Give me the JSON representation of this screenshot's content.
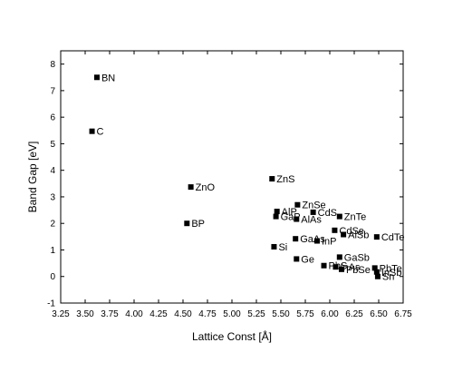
{
  "chart_data": {
    "type": "scatter",
    "xlabel": "Lattice Const [Å]",
    "ylabel": "Band Gap [eV]",
    "xlim": [
      3.25,
      6.75
    ],
    "ylim": [
      -1,
      8.5
    ],
    "xticks": [
      "3.25",
      "3.50",
      "3.75",
      "4.00",
      "4.25",
      "4.50",
      "4.75",
      "5.00",
      "5.25",
      "5.50",
      "5.75",
      "6.00",
      "6.25",
      "6.50",
      "6.75"
    ],
    "yticks": [
      "-1",
      "0",
      "1",
      "2",
      "3",
      "4",
      "5",
      "6",
      "7",
      "8"
    ],
    "grid": false,
    "marker_color": "#000000",
    "points": [
      {
        "label": "BN",
        "x": 3.62,
        "y": 7.5
      },
      {
        "label": "C",
        "x": 3.57,
        "y": 5.47
      },
      {
        "label": "ZnO",
        "x": 4.58,
        "y": 3.37
      },
      {
        "label": "BP",
        "x": 4.54,
        "y": 2.0
      },
      {
        "label": "ZnS",
        "x": 5.41,
        "y": 3.68
      },
      {
        "label": "ZnSe",
        "x": 5.67,
        "y": 2.7
      },
      {
        "label": "CdS",
        "x": 5.83,
        "y": 2.42
      },
      {
        "label": "ZnTe",
        "x": 6.1,
        "y": 2.26
      },
      {
        "label": "AlP",
        "x": 5.46,
        "y": 2.45
      },
      {
        "label": "GaP",
        "x": 5.45,
        "y": 2.26
      },
      {
        "label": "AlAs",
        "x": 5.66,
        "y": 2.16
      },
      {
        "label": "CdSe",
        "x": 6.05,
        "y": 1.74
      },
      {
        "label": "AlSb",
        "x": 6.14,
        "y": 1.58
      },
      {
        "label": "CdTe",
        "x": 6.48,
        "y": 1.49
      },
      {
        "label": "GaAs",
        "x": 5.65,
        "y": 1.42
      },
      {
        "label": "InP",
        "x": 5.87,
        "y": 1.34
      },
      {
        "label": "Si",
        "x": 5.43,
        "y": 1.12
      },
      {
        "label": "GaSb",
        "x": 6.1,
        "y": 0.73
      },
      {
        "label": "Ge",
        "x": 5.66,
        "y": 0.66
      },
      {
        "label": "PbS",
        "x": 5.94,
        "y": 0.41
      },
      {
        "label": "InAs",
        "x": 6.06,
        "y": 0.36
      },
      {
        "label": "PbSe",
        "x": 6.12,
        "y": 0.27
      },
      {
        "label": "PbTe",
        "x": 6.46,
        "y": 0.32
      },
      {
        "label": "InSb",
        "x": 6.48,
        "y": 0.17
      },
      {
        "label": "Sn",
        "x": 6.49,
        "y": 0.0
      }
    ]
  }
}
